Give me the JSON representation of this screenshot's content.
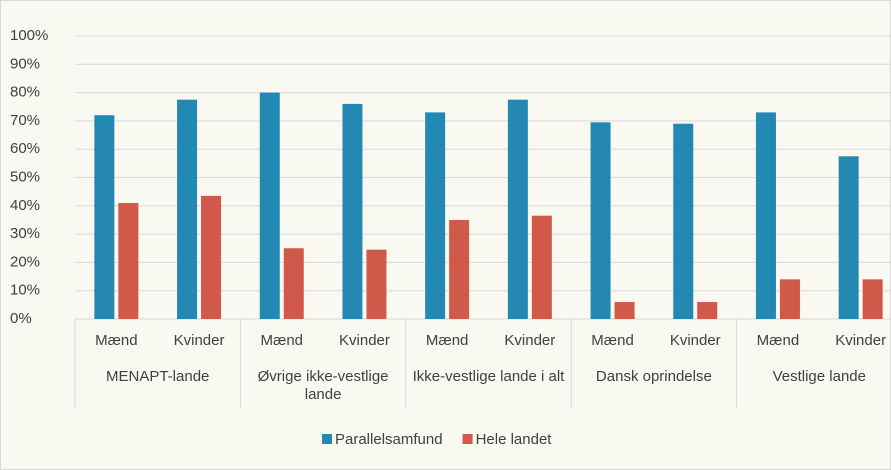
{
  "chart_data": {
    "type": "bar",
    "categories": [
      "Mænd",
      "Kvinder",
      "Mænd",
      "Kvinder",
      "Mænd",
      "Kvinder",
      "Mænd",
      "Kvinder",
      "Mænd",
      "Kvinder"
    ],
    "groups": [
      "MENAPT-lande",
      "Øvrige ikke-vestlige lande",
      "Ikke-vestlige lande i alt",
      "Dansk oprindelse",
      "Vestlige lande"
    ],
    "series": [
      {
        "name": "Parallelsamfund",
        "color": "#2389b3",
        "values": [
          72,
          77.5,
          80,
          76,
          73,
          77.5,
          69.5,
          69,
          73,
          57.5
        ]
      },
      {
        "name": "Hele landet",
        "color": "#d0594a",
        "values": [
          41,
          43.5,
          25,
          24.5,
          35,
          36.5,
          6,
          6,
          14,
          14
        ]
      }
    ],
    "ylim": [
      0,
      100
    ],
    "yticks": [
      {
        "value": 0,
        "label": "0%"
      },
      {
        "value": 10,
        "label": "10%"
      },
      {
        "value": 20,
        "label": "20%"
      },
      {
        "value": 30,
        "label": "30%"
      },
      {
        "value": 40,
        "label": "40%"
      },
      {
        "value": 50,
        "label": "50%"
      },
      {
        "value": 60,
        "label": "60%"
      },
      {
        "value": 70,
        "label": "70%"
      },
      {
        "value": 80,
        "label": "80%"
      },
      {
        "value": 90,
        "label": "90%"
      },
      {
        "value": 100,
        "label": "100%"
      }
    ],
    "grid": true,
    "legend": "bottom"
  }
}
